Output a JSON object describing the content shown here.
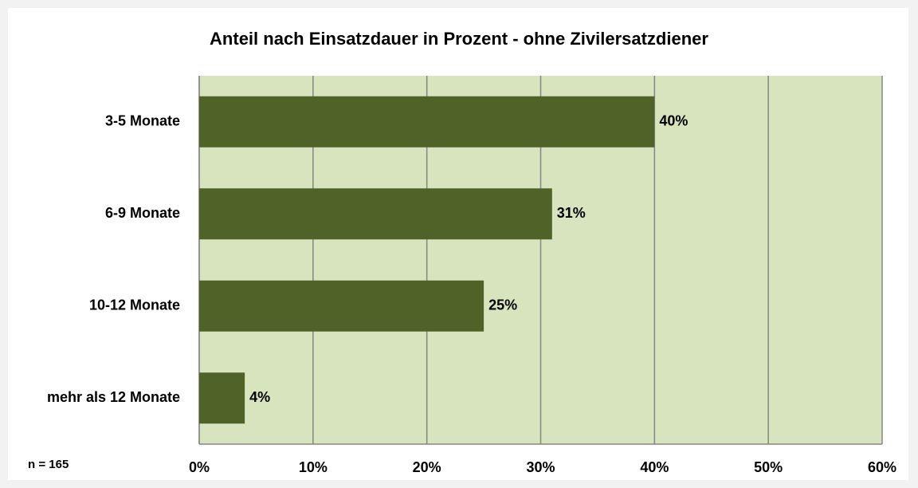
{
  "chart_data": {
    "type": "bar",
    "orientation": "horizontal",
    "title": "Anteil nach Einsatzdauer in Prozent - ohne Zivilersatzdiener",
    "categories": [
      "3-5 Monate",
      "6-9 Monate",
      "10-12 Monate",
      "mehr als 12 Monate"
    ],
    "values": [
      40,
      31,
      25,
      4
    ],
    "value_labels": [
      "40%",
      "31%",
      "25%",
      "4%"
    ],
    "color": "#4f6228",
    "plot_background": "#d7e4bd",
    "xlim": [
      0,
      60
    ],
    "xticks": [
      {
        "value": 0,
        "label": "0%"
      },
      {
        "value": 10,
        "label": "10%"
      },
      {
        "value": 20,
        "label": "20%"
      },
      {
        "value": 30,
        "label": "30%"
      },
      {
        "value": 40,
        "label": "40%"
      },
      {
        "value": 50,
        "label": "50%"
      },
      {
        "value": 60,
        "label": "60%"
      }
    ],
    "grid": true,
    "annotation": "n = 165"
  }
}
